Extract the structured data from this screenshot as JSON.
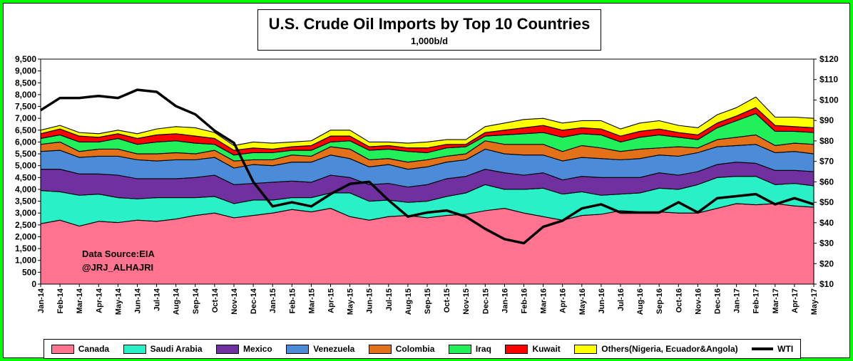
{
  "chart_data": {
    "type": "area",
    "title": "U.S. Crude Oil Imports by Top 10 Countries",
    "subtitle": "1,000b/d",
    "x_labels": [
      "Jan-14",
      "Feb-14",
      "Mar-14",
      "Apr-14",
      "May-14",
      "Jun-14",
      "Jul-14",
      "Aug-14",
      "Sep-14",
      "Oct-14",
      "Nov-14",
      "Dec-14",
      "Jan-15",
      "Feb-15",
      "Mar-15",
      "Apr-15",
      "May-15",
      "Jun-15",
      "Jul-15",
      "Aug-15",
      "Sep-15",
      "Oct-15",
      "Nov-15",
      "Dec-15",
      "Jan-16",
      "Feb-16",
      "Mar-16",
      "Apr-16",
      "May-16",
      "Jun-16",
      "Jul-16",
      "Aug-16",
      "Sep-16",
      "Oct-16",
      "Nov-16",
      "Dec-16",
      "Jan-17",
      "Feb-17",
      "Mar-17",
      "Apr-17",
      "May-17"
    ],
    "y_left": {
      "min": 0,
      "max": 9500,
      "step": 500,
      "tick_labels": [
        "0",
        "500",
        "1,000",
        "1,500",
        "2,000",
        "2,500",
        "3,000",
        "3,500",
        "4,000",
        "4,500",
        "5,000",
        "5,500",
        "6,000",
        "6,500",
        "7,000",
        "7,500",
        "8,000",
        "8,500",
        "9,000",
        "9,500"
      ]
    },
    "y_right": {
      "min": 10,
      "max": 120,
      "step": 10,
      "tick_labels": [
        "$10",
        "$20",
        "$30",
        "$40",
        "$50",
        "$60",
        "$70",
        "$80",
        "$90",
        "$100",
        "$110",
        "$120"
      ]
    },
    "series": [
      {
        "name": "Canada",
        "color": "#FF7390",
        "values": [
          2550,
          2700,
          2450,
          2650,
          2600,
          2700,
          2650,
          2750,
          2900,
          3000,
          2800,
          2900,
          3000,
          3150,
          3050,
          3200,
          2850,
          2700,
          2850,
          2900,
          2800,
          2900,
          2950,
          3100,
          3200,
          3000,
          2850,
          2700,
          2900,
          2950,
          3100,
          3050,
          3050,
          3000,
          3000,
          3200,
          3400,
          3350,
          3400,
          3300,
          3250
        ]
      },
      {
        "name": "Saudi Arabia",
        "color": "#2AF0C8",
        "values": [
          1400,
          1200,
          1300,
          1150,
          1050,
          900,
          1000,
          900,
          750,
          700,
          600,
          650,
          550,
          500,
          600,
          650,
          1000,
          800,
          700,
          550,
          700,
          800,
          900,
          1100,
          800,
          1000,
          1200,
          1100,
          1000,
          800,
          700,
          800,
          1000,
          1000,
          1200,
          1300,
          1150,
          1200,
          800,
          950,
          900
        ]
      },
      {
        "name": "Mexico",
        "color": "#7030A0",
        "values": [
          900,
          950,
          900,
          850,
          950,
          850,
          800,
          800,
          850,
          900,
          800,
          700,
          750,
          700,
          650,
          750,
          650,
          700,
          700,
          650,
          700,
          750,
          700,
          650,
          700,
          600,
          650,
          600,
          650,
          750,
          700,
          650,
          650,
          600,
          550,
          550,
          600,
          550,
          600,
          550,
          600
        ]
      },
      {
        "name": "Venezuela",
        "color": "#4B8BD8",
        "values": [
          750,
          800,
          700,
          750,
          800,
          800,
          750,
          800,
          750,
          750,
          700,
          800,
          700,
          800,
          850,
          850,
          800,
          750,
          800,
          750,
          750,
          700,
          700,
          850,
          800,
          850,
          750,
          800,
          800,
          800,
          750,
          800,
          750,
          800,
          800,
          750,
          700,
          800,
          750,
          800,
          750
        ]
      },
      {
        "name": "Colombia",
        "color": "#E2711A",
        "values": [
          300,
          350,
          250,
          300,
          300,
          250,
          300,
          300,
          250,
          300,
          300,
          200,
          250,
          300,
          250,
          350,
          400,
          300,
          250,
          300,
          300,
          250,
          250,
          350,
          400,
          450,
          450,
          400,
          500,
          450,
          350,
          400,
          300,
          400,
          200,
          300,
          350,
          400,
          300,
          350,
          400
        ]
      },
      {
        "name": "Iraq",
        "color": "#22F05A",
        "values": [
          250,
          300,
          400,
          300,
          450,
          400,
          500,
          500,
          450,
          250,
          250,
          300,
          300,
          200,
          250,
          200,
          350,
          400,
          400,
          450,
          300,
          350,
          300,
          200,
          400,
          450,
          500,
          600,
          500,
          550,
          400,
          500,
          550,
          400,
          350,
          500,
          700,
          900,
          600,
          500,
          500
        ]
      },
      {
        "name": "Kuwait",
        "color": "#FF0000",
        "values": [
          200,
          250,
          250,
          200,
          200,
          250,
          300,
          300,
          300,
          250,
          200,
          200,
          150,
          150,
          200,
          250,
          200,
          150,
          150,
          150,
          200,
          150,
          100,
          150,
          200,
          250,
          300,
          300,
          250,
          250,
          250,
          250,
          250,
          200,
          200,
          200,
          200,
          250,
          250,
          200,
          200
        ]
      },
      {
        "name": "Others(Nigeria, Ecuador&Angola)",
        "color": "#FFFF00",
        "values": [
          150,
          150,
          150,
          150,
          150,
          200,
          250,
          300,
          350,
          250,
          200,
          250,
          250,
          200,
          200,
          250,
          250,
          200,
          150,
          200,
          250,
          200,
          200,
          250,
          300,
          350,
          300,
          300,
          300,
          350,
          300,
          350,
          350,
          300,
          300,
          350,
          350,
          450,
          350,
          400,
          400
        ]
      },
      {
        "name": "WTI",
        "color": "#000000",
        "line": true,
        "values": [
          95,
          101,
          101,
          102,
          101,
          105,
          104,
          97,
          93,
          85,
          79,
          60,
          48,
          50,
          48,
          54,
          59,
          60,
          51,
          43,
          45,
          46,
          43,
          37,
          32,
          30,
          38,
          41,
          47,
          49,
          45,
          45,
          45,
          50,
          45,
          52,
          53,
          54,
          49,
          52,
          49
        ]
      }
    ],
    "legend_position": "bottom",
    "annotation": [
      "Data Source:EIA",
      "@JRJ_ALHAJRI"
    ]
  },
  "colors": {
    "background": "#00FF00",
    "plot": "#FFFFFF"
  }
}
